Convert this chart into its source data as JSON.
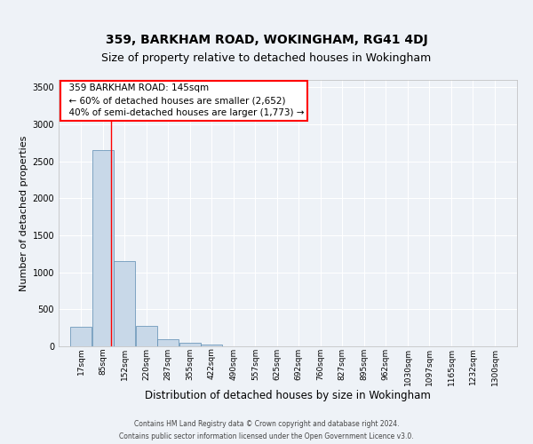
{
  "title": "359, BARKHAM ROAD, WOKINGHAM, RG41 4DJ",
  "subtitle": "Size of property relative to detached houses in Wokingham",
  "xlabel": "Distribution of detached houses by size in Wokingham",
  "ylabel": "Number of detached properties",
  "footer_line1": "Contains HM Land Registry data © Crown copyright and database right 2024.",
  "footer_line2": "Contains public sector information licensed under the Open Government Licence v3.0.",
  "annotation_line1": "359 BARKHAM ROAD: 145sqm",
  "annotation_line2": "← 60% of detached houses are smaller (2,652)",
  "annotation_line3": "40% of semi-detached houses are larger (1,773) →",
  "bar_color": "#c8d8e8",
  "bar_edge_color": "#5a8ab0",
  "red_line_x": 145,
  "ylim": [
    0,
    3600
  ],
  "yticks": [
    0,
    500,
    1000,
    1500,
    2000,
    2500,
    3000,
    3500
  ],
  "bins": [
    17,
    85,
    152,
    220,
    287,
    355,
    422,
    490,
    557,
    625,
    692,
    760,
    827,
    895,
    962,
    1030,
    1097,
    1165,
    1232,
    1300,
    1367
  ],
  "bar_heights": [
    270,
    2650,
    1150,
    280,
    100,
    50,
    30,
    5,
    2,
    1,
    1,
    1,
    0,
    0,
    0,
    0,
    0,
    0,
    0,
    0
  ],
  "background_color": "#eef2f7",
  "grid_color": "#ffffff",
  "title_fontsize": 10,
  "subtitle_fontsize": 9,
  "xlabel_fontsize": 8.5,
  "ylabel_fontsize": 8,
  "annotation_fontsize": 7.5,
  "tick_fontsize": 6.5,
  "footer_fontsize": 5.5
}
